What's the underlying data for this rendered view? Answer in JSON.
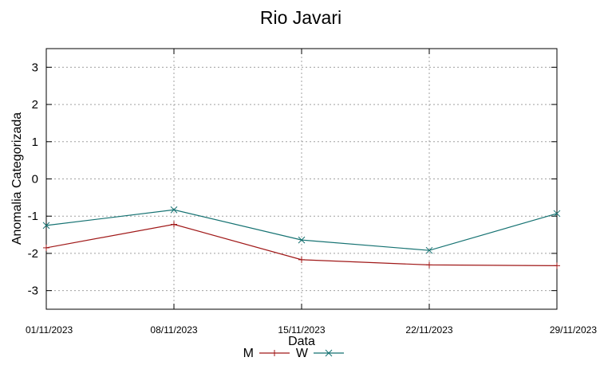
{
  "chart_data": {
    "type": "line",
    "title": "Rio Javari",
    "xlabel": "Data",
    "ylabel": "Anomalia Categorizada",
    "categories": [
      "01/11/2023",
      "08/11/2023",
      "15/11/2023",
      "22/11/2023",
      "29/11/2023"
    ],
    "yticks": [
      "-3",
      "-2",
      "-1",
      "0",
      "1",
      "2",
      "3"
    ],
    "ylim": [
      -3.5,
      3.5
    ],
    "grid": true,
    "legend_position": "bottom-center",
    "series": [
      {
        "name": "M",
        "color": "#a01818",
        "marker": "plus",
        "x": [
          "01/11/2023",
          "08/11/2023",
          "15/11/2023",
          "22/11/2023",
          "29/11/2023"
        ],
        "values": [
          -1.85,
          -1.22,
          -2.17,
          -2.31,
          -2.33
        ]
      },
      {
        "name": "W",
        "color": "#157272",
        "marker": "cross",
        "x": [
          "01/11/2023",
          "08/11/2023",
          "15/11/2023",
          "22/11/2023",
          "29/11/2023"
        ],
        "values": [
          -1.25,
          -0.83,
          -1.64,
          -1.92,
          -0.93
        ]
      }
    ]
  }
}
